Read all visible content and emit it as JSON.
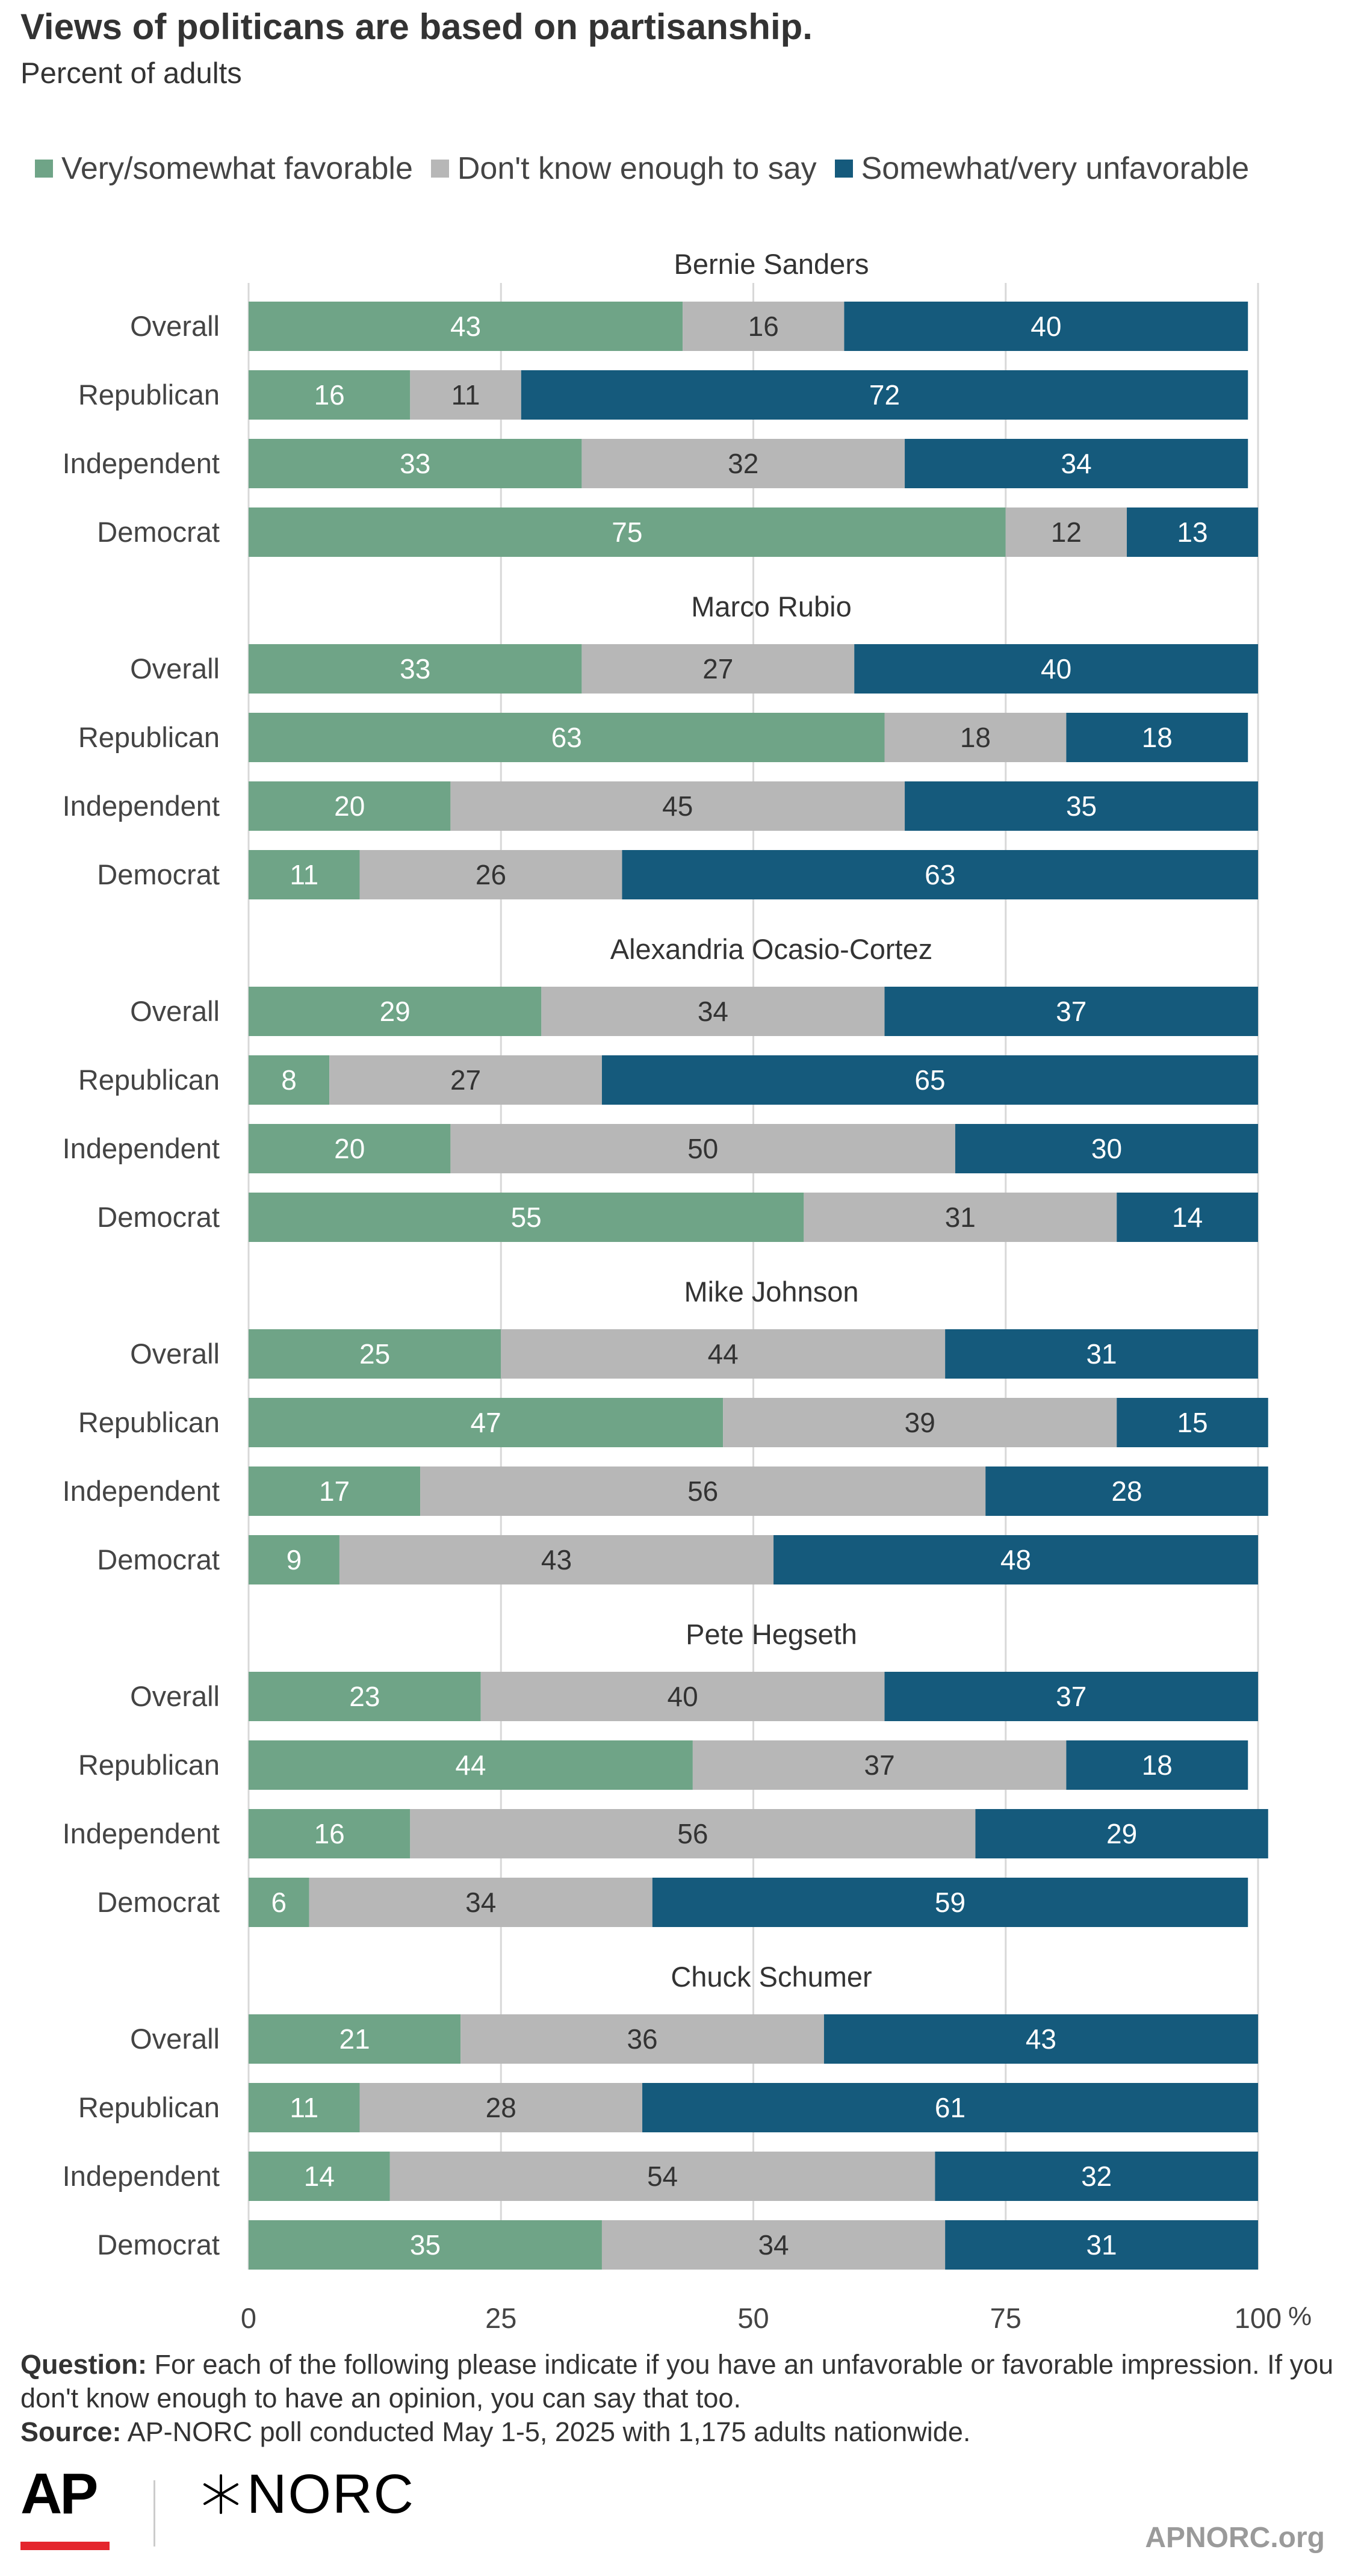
{
  "title": "Views of politicans are based on partisanship.",
  "subtitle": "Percent of adults",
  "colors": {
    "favorable": "#6fa487",
    "unknown": "#b7b7b7",
    "unfavorable": "#155a7c",
    "grid": "#d8d8d8"
  },
  "legend": [
    {
      "label": "Very/somewhat favorable",
      "color": "#6fa487"
    },
    {
      "label": "Don't know enough to say",
      "color": "#b7b7b7"
    },
    {
      "label": "Somewhat/very unfavorable",
      "color": "#155a7c"
    }
  ],
  "chart_data": {
    "type": "bar",
    "orientation": "horizontal",
    "stacked": true,
    "xlim": [
      0,
      100
    ],
    "x_ticks": [
      "0",
      "25",
      "50",
      "75",
      "100"
    ],
    "x_unit": "%",
    "grid": true,
    "series_names": [
      "Very/somewhat favorable",
      "Don't know enough to say",
      "Somewhat/very unfavorable"
    ],
    "groups": [
      {
        "name": "Bernie Sanders",
        "rows": [
          {
            "label": "Overall",
            "values": [
              43,
              16,
              40
            ]
          },
          {
            "label": "Republican",
            "values": [
              16,
              11,
              72
            ]
          },
          {
            "label": "Independent",
            "values": [
              33,
              32,
              34
            ]
          },
          {
            "label": "Democrat",
            "values": [
              75,
              12,
              13
            ]
          }
        ]
      },
      {
        "name": "Marco Rubio",
        "rows": [
          {
            "label": "Overall",
            "values": [
              33,
              27,
              40
            ]
          },
          {
            "label": "Republican",
            "values": [
              63,
              18,
              18
            ]
          },
          {
            "label": "Independent",
            "values": [
              20,
              45,
              35
            ]
          },
          {
            "label": "Democrat",
            "values": [
              11,
              26,
              63
            ]
          }
        ]
      },
      {
        "name": "Alexandria Ocasio-Cortez",
        "rows": [
          {
            "label": "Overall",
            "values": [
              29,
              34,
              37
            ]
          },
          {
            "label": "Republican",
            "values": [
              8,
              27,
              65
            ]
          },
          {
            "label": "Independent",
            "values": [
              20,
              50,
              30
            ]
          },
          {
            "label": "Democrat",
            "values": [
              55,
              31,
              14
            ]
          }
        ]
      },
      {
        "name": "Mike Johnson",
        "rows": [
          {
            "label": "Overall",
            "values": [
              25,
              44,
              31
            ]
          },
          {
            "label": "Republican",
            "values": [
              47,
              39,
              15
            ]
          },
          {
            "label": "Independent",
            "values": [
              17,
              56,
              28
            ]
          },
          {
            "label": "Democrat",
            "values": [
              9,
              43,
              48
            ]
          }
        ]
      },
      {
        "name": "Pete Hegseth",
        "rows": [
          {
            "label": "Overall",
            "values": [
              23,
              40,
              37
            ]
          },
          {
            "label": "Republican",
            "values": [
              44,
              37,
              18
            ]
          },
          {
            "label": "Independent",
            "values": [
              16,
              56,
              29
            ]
          },
          {
            "label": "Democrat",
            "values": [
              6,
              34,
              59
            ]
          }
        ]
      },
      {
        "name": "Chuck Schumer",
        "rows": [
          {
            "label": "Overall",
            "values": [
              21,
              36,
              43
            ]
          },
          {
            "label": "Republican",
            "values": [
              11,
              28,
              61
            ]
          },
          {
            "label": "Independent",
            "values": [
              14,
              54,
              32
            ]
          },
          {
            "label": "Democrat",
            "values": [
              35,
              34,
              31
            ]
          }
        ]
      }
    ]
  },
  "footer": {
    "question_label": "Question:",
    "question_text": "For each of the following please indicate if you have an unfavorable or favorable impression. If you don't know enough to have an opinion, you can say that too.",
    "source_label": "Source:",
    "source_text": "AP-NORC poll conducted May 1-5, 2025 with 1,175 adults nationwide.",
    "logo_ap": "AP",
    "logo_norc": "NORC",
    "site": "APNORC.org"
  }
}
